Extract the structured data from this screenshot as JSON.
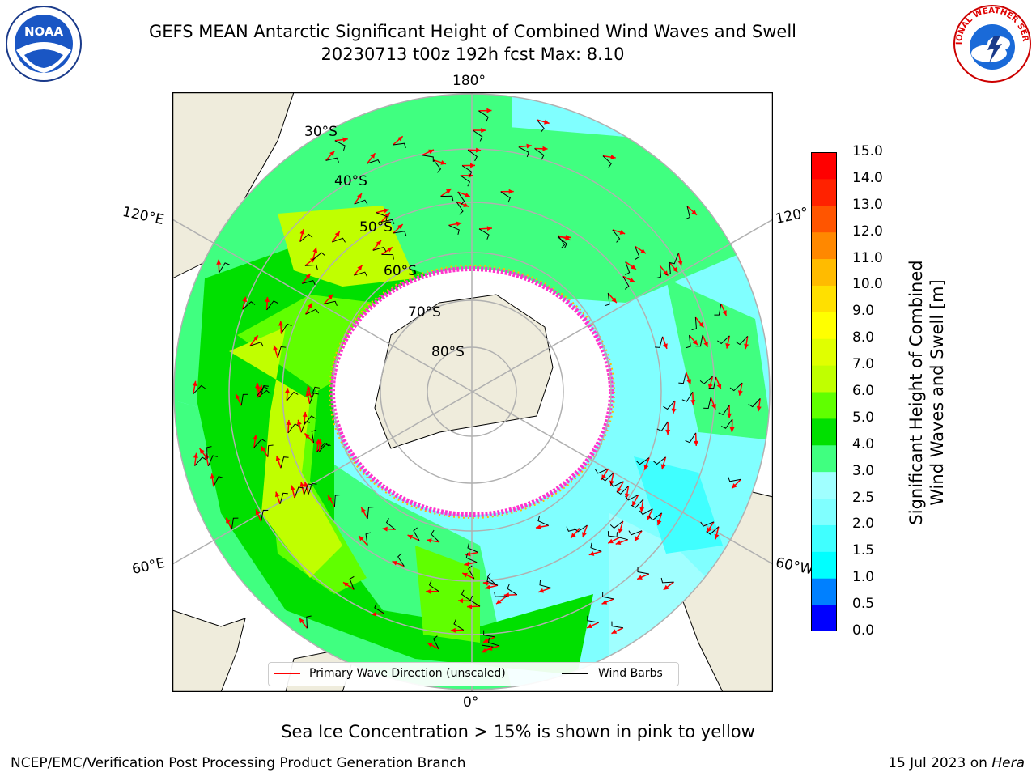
{
  "header": {
    "title_line1": "GEFS MEAN Antarctic Significant Height of Combined Wind Waves and Swell",
    "title_line2": "20230713 t00z 192h fcst   Max: 8.10",
    "logo_left": "noaa-logo",
    "logo_right": "national-weather-service-logo",
    "logo_left_text": "NOAA",
    "logo_right_text": "NATIONAL WEATHER SERVICE"
  },
  "map": {
    "projection": "south-polar-stereographic",
    "longitude_labels": [
      "180°",
      "120°E",
      "120°",
      "60°E",
      "60°W",
      "0°"
    ],
    "latitude_labels": [
      "30°S",
      "40°S",
      "50°S",
      "60°S",
      "70°S",
      "80°S"
    ],
    "colors": {
      "land": "#efecdc",
      "sea_ice": "#ffffff",
      "ice_edge": "#ff33cc",
      "arrow": "#ff0000",
      "barb": "#000000",
      "grid": "#b0b0b0"
    },
    "legend": [
      {
        "label": "Primary Wave Direction (unscaled)",
        "color": "#ff0000"
      },
      {
        "label": "Wind Barbs",
        "color": "#000000"
      }
    ]
  },
  "colorbar": {
    "label": "Significant Height of Combined\nWind Waves and Swell [m]",
    "ticks": [
      "0.0",
      "0.5",
      "1.0",
      "1.5",
      "2.0",
      "2.5",
      "3.0",
      "4.0",
      "5.0",
      "6.0",
      "7.0",
      "8.0",
      "9.0",
      "10.0",
      "11.0",
      "12.0",
      "13.0",
      "14.0",
      "15.0"
    ],
    "colors": [
      "#0000ff",
      "#0080ff",
      "#00ffff",
      "#40ffff",
      "#80ffff",
      "#a0ffff",
      "#40ff80",
      "#00e000",
      "#60ff00",
      "#c0ff00",
      "#e0ff00",
      "#ffff00",
      "#ffe000",
      "#ffbb00",
      "#ff8800",
      "#ff5500",
      "#ff2200",
      "#ff0000"
    ]
  },
  "note": "Sea Ice Concentration > 15% is shown in pink to yellow",
  "footer": {
    "left": "NCEP/EMC/Verification Post Processing Product Generation Branch",
    "right_date": "15 Jul 2023 on ",
    "right_machine": "Hera"
  }
}
